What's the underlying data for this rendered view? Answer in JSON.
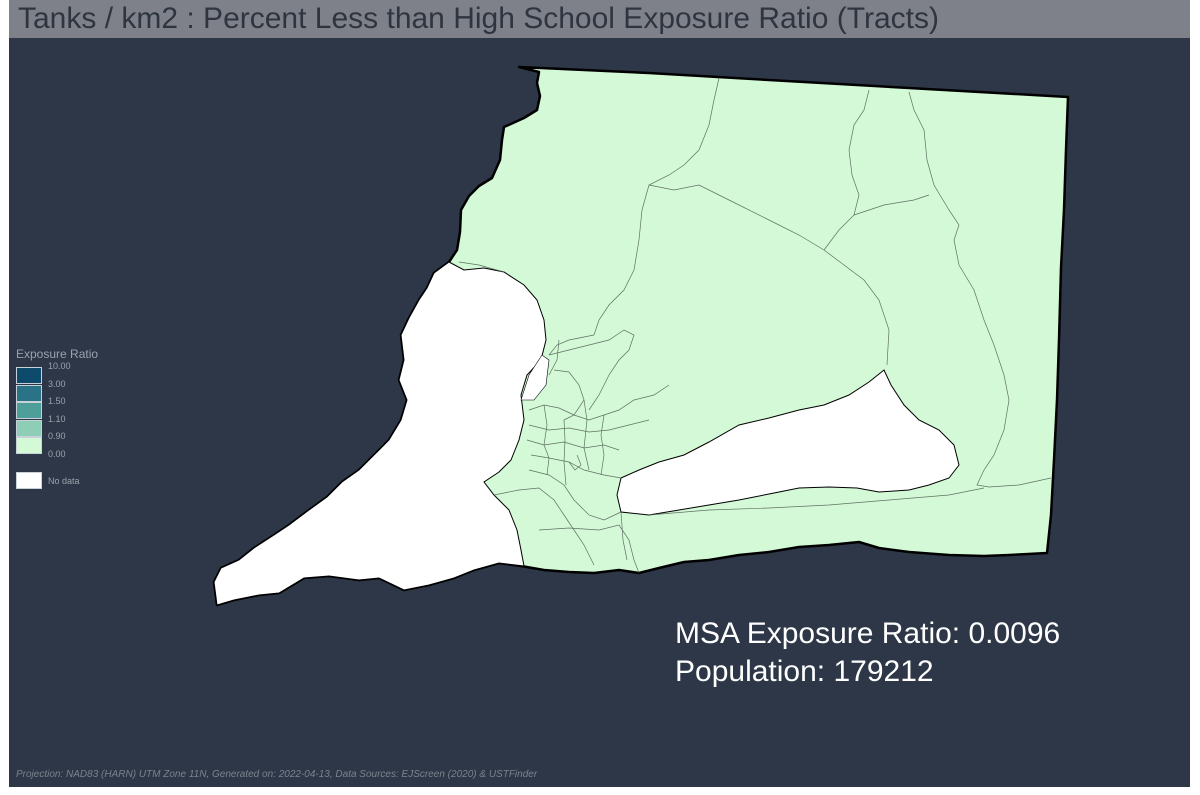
{
  "map": {
    "title": "Tanks / km2 : Percent Less than High School Exposure Ratio (Tracts)",
    "legend": {
      "title": "Exposure Ratio",
      "classes": [
        {
          "label": "10.00",
          "color": "#0d4a6b"
        },
        {
          "label": "3.00",
          "color": "#2a7386"
        },
        {
          "label": "1.50",
          "color": "#4e9e9a"
        },
        {
          "label": "1.10",
          "color": "#8ecdb6"
        },
        {
          "label": "0.90",
          "color": "#d3f9d6"
        },
        {
          "label": "0.00",
          "color": "#d3f9d6"
        }
      ],
      "nodata": {
        "label": "No data",
        "color": "#ffffff"
      }
    },
    "stats": {
      "exposure_ratio": "MSA Exposure Ratio: 0.0096",
      "population": "Population: 179212"
    },
    "footer": "Projection: NAD83 (HARN) UTM Zone 11N, Generated on: 2022-04-13, Data Sources: EJScreen (2020) & USTFinder",
    "colors": {
      "background": "#2d3747",
      "title_bar": "#7e8189",
      "tract_fill": "#d3f9d6",
      "nodata_fill": "#ffffff",
      "outline": "#000000"
    }
  }
}
